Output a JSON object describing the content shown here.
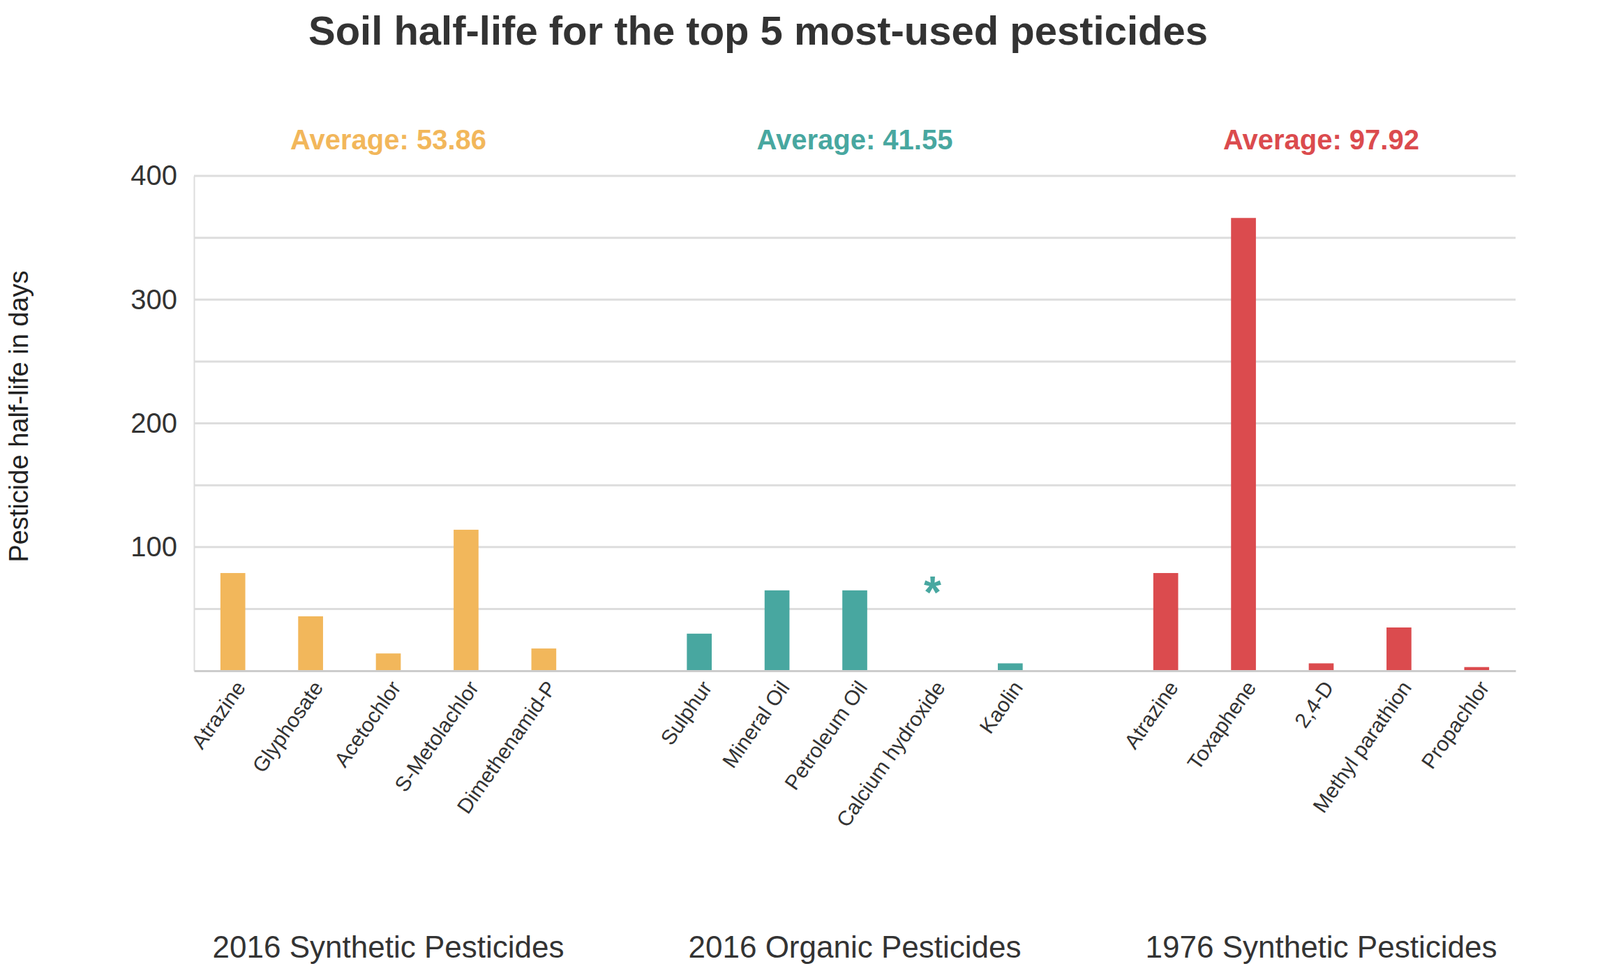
{
  "chart_data": {
    "type": "bar",
    "title": "Soil half-life for the top 5 most-used pesticides",
    "y_label": "Pesticide half-life in days",
    "ylim": [
      0,
      400
    ],
    "yticks": [
      100,
      200,
      300,
      400
    ],
    "minor_yticks": [
      50,
      150,
      250,
      350
    ],
    "grid": true,
    "series": [
      {
        "name": "2016 Synthetic Pesticides",
        "color": "#F2B75B",
        "average": "Average: 53.86",
        "categories": [
          "Atrazine",
          "Glyphosate",
          "Acetochlor",
          "S-Metolachlor",
          "Dimethenamid-P"
        ],
        "values": [
          79,
          44,
          14,
          114,
          18
        ]
      },
      {
        "name": "2016 Organic Pesticides",
        "color": "#48A7A0",
        "average": "Average: 41.55",
        "categories": [
          "Sulphur",
          "Mineral Oil",
          "Petroleum Oil",
          "Calcium hydroxide",
          "Kaolin"
        ],
        "values": [
          30,
          65,
          65,
          null,
          6
        ],
        "annotations": [
          {
            "category": "Calcium hydroxide",
            "text": "*"
          }
        ]
      },
      {
        "name": "1976 Synthetic Pesticides",
        "color": "#DB4B4E",
        "average": "Average: 97.92",
        "categories": [
          "Atrazine",
          "Toxaphene",
          "2,4-D",
          "Methyl parathion",
          "Propachlor"
        ],
        "values": [
          79,
          366,
          6,
          35,
          3
        ]
      }
    ]
  }
}
